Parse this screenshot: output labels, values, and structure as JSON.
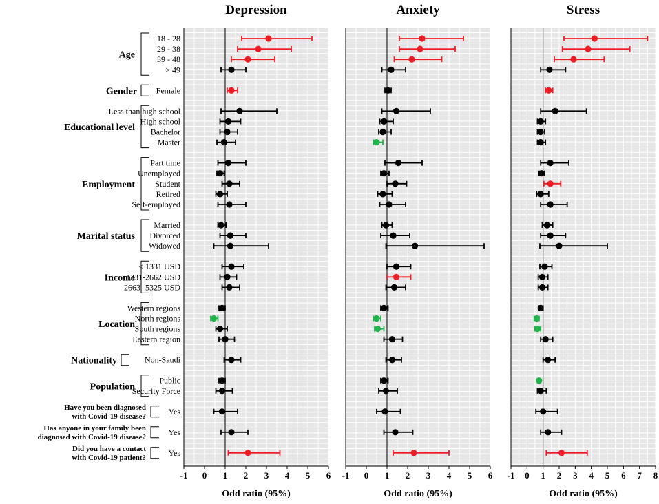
{
  "chart_data": {
    "type": "forest",
    "xlabel": "Odd ratio (95%)",
    "colors": {
      "sig_high": "#ee1c24",
      "sig_low": "#22b24c",
      "nonsig": "#000000",
      "panel_bg": "#e6e6e6",
      "grid": "#ffffff"
    },
    "groups": [
      {
        "name": "Age",
        "rows": [
          "18 - 28",
          "29 - 38",
          "39 - 48",
          ">  49"
        ]
      },
      {
        "name": "Gender",
        "rows": [
          "Female"
        ]
      },
      {
        "name": "Educational level",
        "rows": [
          "Less than high school",
          "High school",
          "Bachelor",
          "Master"
        ]
      },
      {
        "name": "Employment",
        "rows": [
          "Part time",
          "Unemployed",
          "Student",
          "Retired",
          "Self-employed"
        ]
      },
      {
        "name": "Marital status",
        "rows": [
          "Married",
          "Divorced",
          "Widowed"
        ]
      },
      {
        "name": "Income",
        "rows": [
          "<  1331 USD",
          "1331-2662 USD",
          "2663- 5325 USD"
        ]
      },
      {
        "name": "Location",
        "rows": [
          "Western regions",
          "North regions",
          "South regions",
          "Eastern region"
        ]
      },
      {
        "name": "Nationality",
        "rows": [
          "Non-Saudi"
        ]
      },
      {
        "name": "Population",
        "rows": [
          "Public",
          "Security Force"
        ]
      },
      {
        "name": "Have you been diagnosed|with Covid-19 disease?",
        "rows": [
          "Yes"
        ]
      },
      {
        "name": "Has anyone in your family been|diagnosed with Covid-19 disease?",
        "rows": [
          "Yes"
        ]
      },
      {
        "name": "Did you have a contact|with Covid-19 patient?",
        "rows": [
          "Yes"
        ]
      }
    ],
    "panels": [
      {
        "title": "Depression",
        "ticks": [
          -1,
          0,
          1,
          2,
          3,
          4,
          5,
          6
        ],
        "xlim": [
          -1,
          6
        ],
        "estimates": [
          [
            3.1,
            1.8,
            5.2,
            "sig_high"
          ],
          [
            2.6,
            1.6,
            4.2,
            "sig_high"
          ],
          [
            2.1,
            1.3,
            3.4,
            "sig_high"
          ],
          [
            1.3,
            0.8,
            2.0,
            "nonsig"
          ],
          [
            1.3,
            1.1,
            1.6,
            "sig_high"
          ],
          [
            1.7,
            0.8,
            3.5,
            "nonsig"
          ],
          [
            1.15,
            0.75,
            1.75,
            "nonsig"
          ],
          [
            1.1,
            0.75,
            1.6,
            "nonsig"
          ],
          [
            0.95,
            0.6,
            1.5,
            "nonsig"
          ],
          [
            1.15,
            0.65,
            2.0,
            "nonsig"
          ],
          [
            0.75,
            0.6,
            0.95,
            "nonsig"
          ],
          [
            1.2,
            0.85,
            1.7,
            "nonsig"
          ],
          [
            0.75,
            0.55,
            1.1,
            "nonsig"
          ],
          [
            1.2,
            0.65,
            2.0,
            "nonsig"
          ],
          [
            0.8,
            0.65,
            1.05,
            "nonsig"
          ],
          [
            1.25,
            0.75,
            2.0,
            "nonsig"
          ],
          [
            1.25,
            0.45,
            3.1,
            "nonsig"
          ],
          [
            1.3,
            0.85,
            1.9,
            "nonsig"
          ],
          [
            1.1,
            0.75,
            1.55,
            "nonsig"
          ],
          [
            1.2,
            0.85,
            1.7,
            "nonsig"
          ],
          [
            0.85,
            0.7,
            1.0,
            "nonsig"
          ],
          [
            0.45,
            0.3,
            0.65,
            "sig_low"
          ],
          [
            0.75,
            0.55,
            1.1,
            "nonsig"
          ],
          [
            1.0,
            0.7,
            1.45,
            "nonsig"
          ],
          [
            1.3,
            0.95,
            1.75,
            "nonsig"
          ],
          [
            0.85,
            0.7,
            1.0,
            "nonsig"
          ],
          [
            0.85,
            0.55,
            1.35,
            "nonsig"
          ],
          [
            0.85,
            0.45,
            1.6,
            "nonsig"
          ],
          [
            1.3,
            0.8,
            2.1,
            "nonsig"
          ],
          [
            2.1,
            1.15,
            3.65,
            "sig_high"
          ]
        ]
      },
      {
        "title": "Anxiety",
        "ticks": [
          -1,
          0,
          1,
          2,
          3,
          4,
          5,
          6
        ],
        "xlim": [
          -1,
          6
        ],
        "estimates": [
          [
            2.7,
            1.6,
            4.7,
            "sig_high"
          ],
          [
            2.6,
            1.6,
            4.3,
            "sig_high"
          ],
          [
            2.2,
            1.35,
            3.65,
            "sig_high"
          ],
          [
            1.2,
            0.75,
            1.9,
            "nonsig"
          ],
          [
            1.05,
            0.9,
            1.2,
            "nonsig"
          ],
          [
            1.45,
            0.75,
            3.1,
            "nonsig"
          ],
          [
            0.85,
            0.65,
            1.3,
            "nonsig"
          ],
          [
            0.8,
            0.6,
            1.2,
            "nonsig"
          ],
          [
            0.5,
            0.35,
            0.8,
            "sig_low"
          ],
          [
            1.55,
            0.9,
            2.7,
            "nonsig"
          ],
          [
            0.85,
            0.7,
            1.1,
            "nonsig"
          ],
          [
            1.4,
            1.0,
            1.95,
            "nonsig"
          ],
          [
            0.8,
            0.55,
            1.25,
            "nonsig"
          ],
          [
            1.1,
            0.65,
            1.9,
            "nonsig"
          ],
          [
            0.95,
            0.75,
            1.25,
            "nonsig"
          ],
          [
            1.3,
            0.7,
            2.1,
            "nonsig"
          ],
          [
            2.35,
            0.95,
            5.7,
            "nonsig"
          ],
          [
            1.45,
            1.0,
            2.15,
            "nonsig"
          ],
          [
            1.45,
            1.0,
            2.15,
            "sig_high"
          ],
          [
            1.35,
            0.95,
            1.9,
            "nonsig"
          ],
          [
            0.85,
            0.7,
            1.05,
            "nonsig"
          ],
          [
            0.5,
            0.35,
            0.7,
            "sig_low"
          ],
          [
            0.55,
            0.4,
            0.85,
            "sig_low"
          ],
          [
            1.25,
            0.85,
            1.75,
            "nonsig"
          ],
          [
            1.25,
            0.95,
            1.7,
            "nonsig"
          ],
          [
            0.85,
            0.7,
            1.05,
            "nonsig"
          ],
          [
            0.95,
            0.6,
            1.5,
            "nonsig"
          ],
          [
            0.9,
            0.5,
            1.65,
            "nonsig"
          ],
          [
            1.4,
            0.85,
            2.25,
            "nonsig"
          ],
          [
            2.3,
            1.3,
            4.0,
            "sig_high"
          ]
        ]
      },
      {
        "title": "Stress",
        "ticks": [
          -1,
          0,
          1,
          2,
          3,
          4,
          5,
          6,
          7,
          8
        ],
        "xlim": [
          -1,
          8
        ],
        "estimates": [
          [
            4.2,
            2.3,
            7.5,
            "sig_high"
          ],
          [
            3.8,
            2.2,
            6.4,
            "sig_high"
          ],
          [
            2.9,
            1.7,
            4.8,
            "sig_high"
          ],
          [
            1.4,
            0.85,
            2.4,
            "nonsig"
          ],
          [
            1.35,
            1.15,
            1.6,
            "sig_high"
          ],
          [
            1.75,
            0.85,
            3.7,
            "nonsig"
          ],
          [
            0.85,
            0.65,
            1.15,
            "nonsig"
          ],
          [
            0.85,
            0.65,
            1.1,
            "nonsig"
          ],
          [
            0.85,
            0.65,
            1.15,
            "nonsig"
          ],
          [
            1.45,
            0.85,
            2.6,
            "nonsig"
          ],
          [
            0.9,
            0.75,
            1.1,
            "nonsig"
          ],
          [
            1.45,
            1.05,
            2.1,
            "sig_high"
          ],
          [
            0.85,
            0.6,
            1.35,
            "nonsig"
          ],
          [
            1.45,
            0.85,
            2.5,
            "nonsig"
          ],
          [
            1.25,
            0.95,
            1.6,
            "nonsig"
          ],
          [
            1.45,
            0.85,
            2.4,
            "nonsig"
          ],
          [
            2.0,
            0.8,
            5.0,
            "nonsig"
          ],
          [
            1.1,
            0.8,
            1.55,
            "nonsig"
          ],
          [
            0.95,
            0.7,
            1.3,
            "nonsig"
          ],
          [
            0.95,
            0.7,
            1.3,
            "nonsig"
          ],
          [
            0.85,
            0.75,
            1.0,
            "nonsig"
          ],
          [
            0.6,
            0.45,
            0.75,
            "sig_low"
          ],
          [
            0.65,
            0.5,
            0.85,
            "sig_low"
          ],
          [
            1.15,
            0.85,
            1.6,
            "nonsig"
          ],
          [
            1.3,
            1.0,
            1.75,
            "nonsig"
          ],
          [
            0.75,
            0.65,
            0.85,
            "sig_low"
          ],
          [
            0.85,
            0.65,
            1.2,
            "nonsig"
          ],
          [
            1.0,
            0.55,
            1.9,
            "nonsig"
          ],
          [
            1.3,
            0.85,
            2.15,
            "nonsig"
          ],
          [
            2.15,
            1.2,
            3.75,
            "sig_high"
          ]
        ]
      }
    ]
  }
}
